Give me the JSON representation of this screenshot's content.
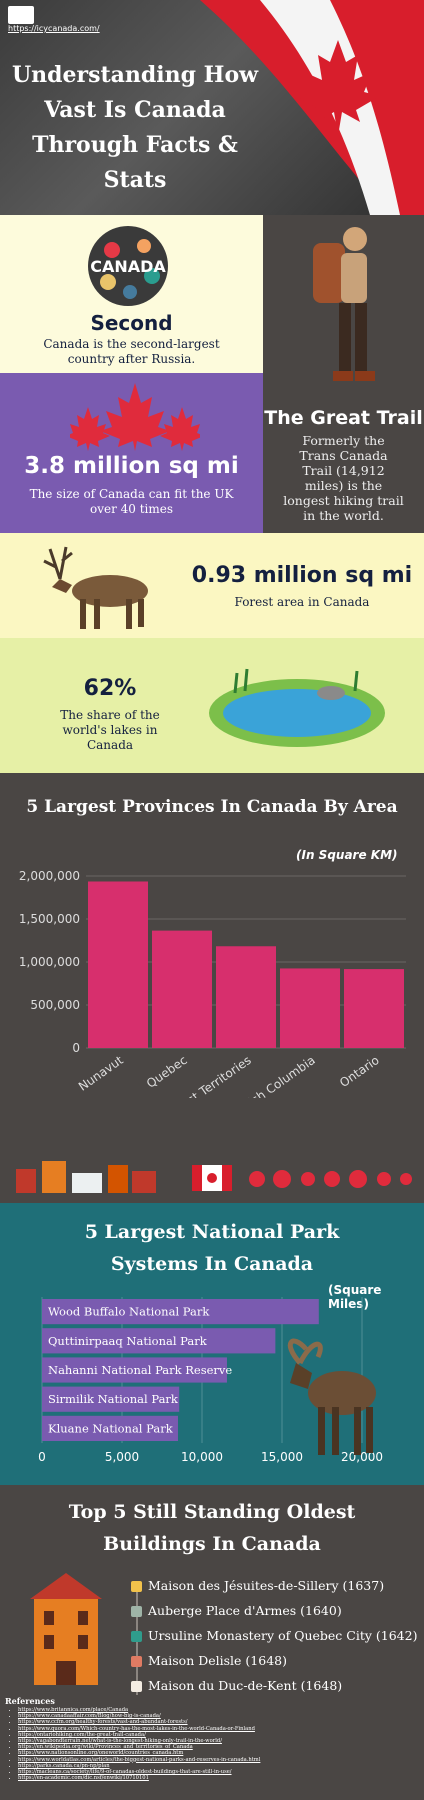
{
  "header": {
    "url": "https://icycanada.com/",
    "title": "Understanding How Vast Is Canada Through Facts & Stats"
  },
  "facts": {
    "second": {
      "stat": "Second",
      "text": "Canada is the second-largest country after Russia."
    },
    "trail": {
      "stat": "The Great Trail",
      "text": "Formerly the Trans Canada Trail (14,912 miles) is the longest hiking trail in the world."
    },
    "area": {
      "stat": "3.8 million sq mi",
      "text": "The size of Canada can fit the UK over 40 times"
    },
    "forest": {
      "stat": "0.93 million sq mi",
      "text": "Forest area in Canada"
    },
    "lakes": {
      "stat": "62%",
      "text": "The share of the world's lakes in Canada"
    }
  },
  "provinces": {
    "title": "5 Largest Provinces In Canada By Area",
    "unit": "(In Square KM)"
  },
  "parks": {
    "title_line1": "5 Largest National Park",
    "title_line2": "Systems In Canada",
    "unit": "(Square Miles)"
  },
  "buildings": {
    "title_line1": "Top 5 Still Standing Oldest",
    "title_line2": "Buildings In Canada",
    "items": [
      {
        "label": "Maison des Jésuites-de-Sillery (1637)",
        "color": "#f2c24b"
      },
      {
        "label": "Auberge Place d'Armes (1640)",
        "color": "#9fb4a7"
      },
      {
        "label": "Ursuline Monastery of Quebec City (1642)",
        "color": "#2f9c8c"
      },
      {
        "label": "Maison Delisle (1648)",
        "color": "#e07b63"
      },
      {
        "label": "Maison du Duc-de-Kent (1648)",
        "color": "#f3ece2"
      }
    ]
  },
  "references": {
    "heading": "References",
    "links": [
      "https://www.britannica.com/place/Canada",
      "https://www.canadaaffair.com/Blog/how-big-is-canada/",
      "https://www.ccfm.org/healthy-forests/vast-and-abundant-forests/",
      "https://www.quora.com/Which-country-has-the-most-lakes-in-the-world-Canada-or-Finland",
      "https://ontariohiking.com/the-great-trail-canada/",
      "https://vagabondterrain.net/what-is-the-longest-hiking-only-trail-in-the-world/",
      "https://en.wikipedia.org/wiki/Provinces_and_territories_of_Canada",
      "https://www.nationsonline.org/oneworld/countries_canada.htm",
      "https://www.worldatlas.com/articles/the-biggest-national-parks-and-reserves-in-canada.html",
      "https://parks.canada.ca/pn-np/plan",
      "https://macleans.ca/society/life/9-of-canadas-oldest-buildings-that-are-still-in-use/",
      "https://en-academic.com/dic.nsf/enwiki/10710101"
    ]
  },
  "colors": {
    "navy": "#14203f",
    "cream": "#fdfbdc",
    "purple": "#7a5bb0",
    "dark": "#4a4644",
    "pink": "#d72f6d",
    "teal": "#1f6f78",
    "bar_purple": "#7a5bb0",
    "green_panel": "#e6f0a6",
    "yellow_panel": "#fbf7c2"
  },
  "chart_data": [
    {
      "type": "bar",
      "title": "5 Largest Provinces In Canada By Area",
      "ylabel": "(In Square KM)",
      "categories": [
        "Nunavut",
        "Quebec",
        "Northwest Territories",
        "British Columbia",
        "Ontario"
      ],
      "values": [
        1936113,
        1365128,
        1183085,
        925186,
        917741
      ],
      "ylim": [
        0,
        2000000
      ],
      "yticks": [
        "0",
        "500,000",
        "1,000,000",
        "1,500,000",
        "2,000,000"
      ],
      "ytick_values": [
        0,
        500000,
        1000000,
        1500000,
        2000000
      ],
      "grid": true
    },
    {
      "type": "bar",
      "orientation": "horizontal",
      "title": "5 Largest National Park Systems In Canada",
      "xlabel": "(Square Miles)",
      "categories": [
        "Wood Buffalo National Park",
        "Quttinirpaaq National Park",
        "Nahanni National Park Reserve",
        "Sirmilik National Park",
        "Kluane National Park"
      ],
      "values": [
        17300,
        14585,
        11560,
        8576,
        8499
      ],
      "xlim": [
        0,
        20000
      ],
      "xticks": [
        "0",
        "5,000",
        "10,000",
        "15,000",
        "20,000"
      ],
      "xtick_values": [
        0,
        5000,
        10000,
        15000,
        20000
      ],
      "grid": true
    }
  ]
}
